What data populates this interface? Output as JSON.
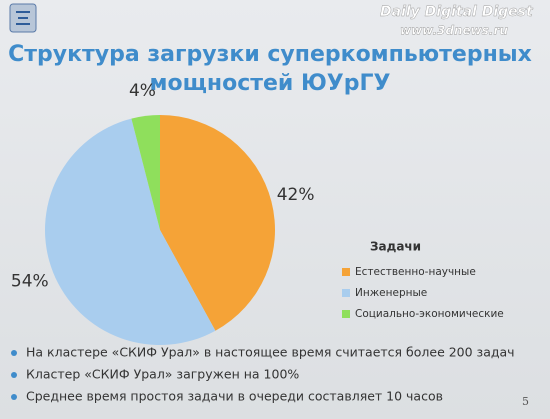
{
  "chart_data": {
    "type": "pie",
    "title": [
      "Структура загрузки суперкомпьютерных",
      "мощностей ЮУрГУ"
    ],
    "legend_title": "Задачи",
    "legend": "right",
    "categories": [
      "Естественно-научные",
      "Инженерные",
      "Социально-экономические"
    ],
    "values": [
      42,
      54,
      4
    ],
    "value_labels": [
      "42%",
      "54%",
      "4%"
    ],
    "colors": [
      "#f5a337",
      "#a9cdee",
      "#8fdf5c"
    ]
  },
  "slide": {
    "bullets": [
      "На кластере «СКИФ Урал» в настоящее время считается более 200 задач",
      "Кластер «СКИФ Урал» загружен на 100%",
      "Среднее время простоя задачи в очереди составляет 10 часов"
    ],
    "page_number": "5",
    "watermark": [
      "Daily Digital Digest",
      "www.3dnews.ru"
    ]
  }
}
